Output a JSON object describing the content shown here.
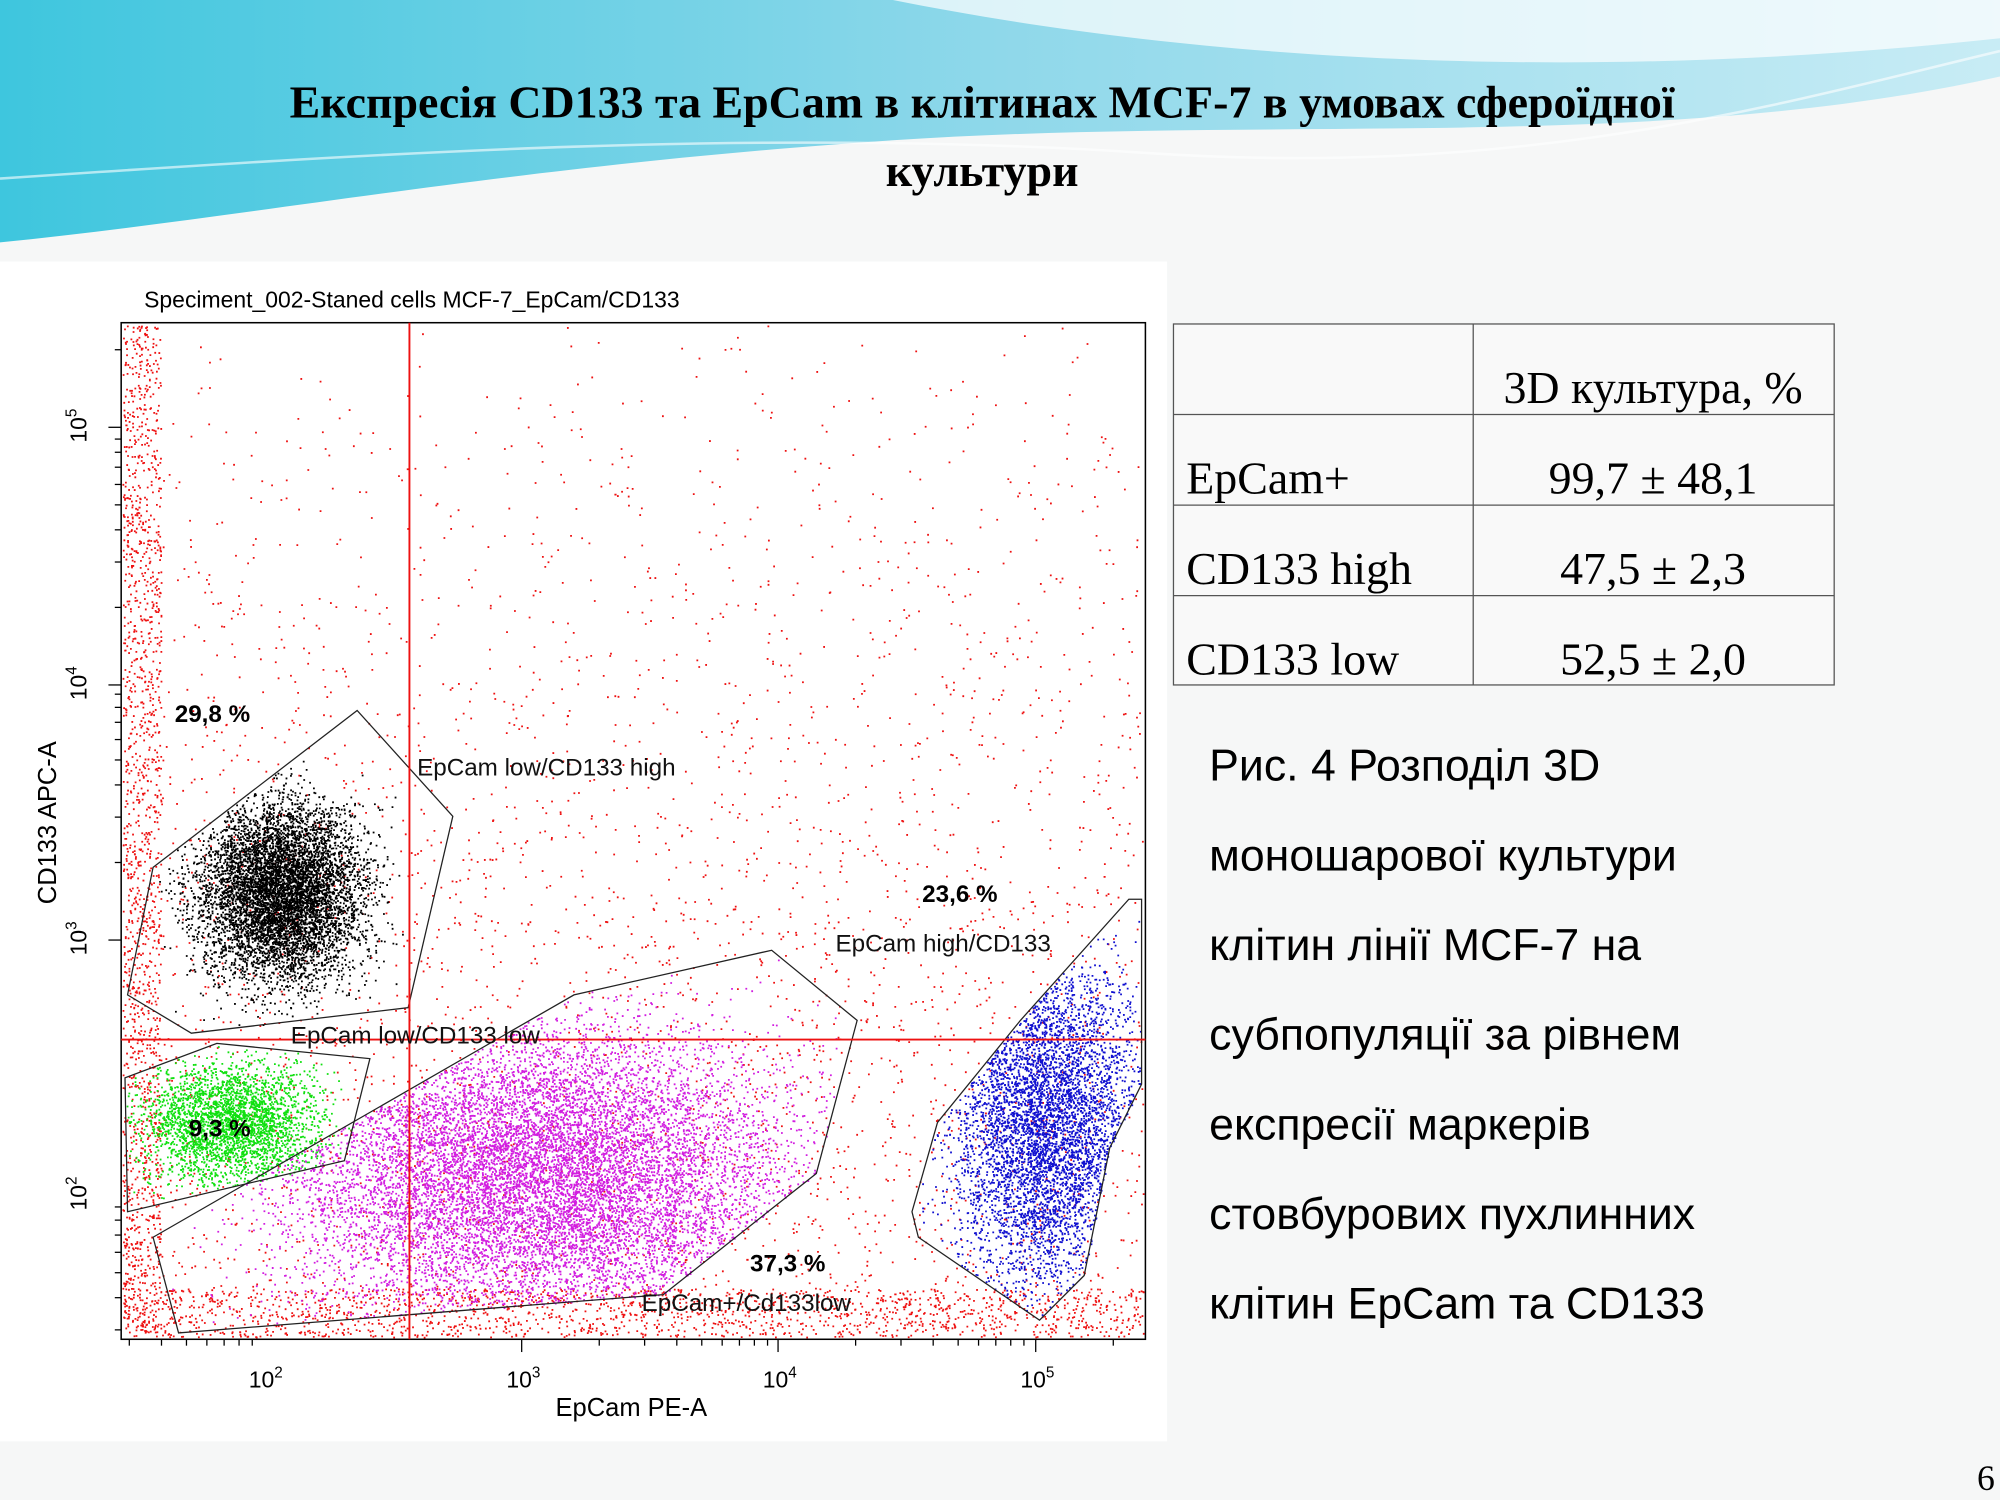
{
  "header": {
    "title_lines": [
      "Експресія CD133 та EpCam в клітинах MCF-7 в умовах сфероїдної",
      "культури"
    ]
  },
  "figure": {
    "title": "Speciment_002-Staned cells MCF-7_EpCam/CD133",
    "x_label": "EpCam PE-A",
    "y_label": "CD133 APC-A",
    "x_ticks": [
      {
        "base": "10",
        "exp": "2"
      },
      {
        "base": "10",
        "exp": "3"
      },
      {
        "base": "10",
        "exp": "4"
      },
      {
        "base": "10",
        "exp": "5"
      }
    ],
    "y_ticks": [
      {
        "base": "10",
        "exp": "2"
      },
      {
        "base": "10",
        "exp": "3"
      },
      {
        "base": "10",
        "exp": "4"
      },
      {
        "base": "10",
        "exp": "5"
      }
    ],
    "gates": [
      {
        "name": "EpCam low/CD133 high",
        "percent": "29,8 %"
      },
      {
        "name": "EpCam low/CD133 low",
        "percent": "9,3 %"
      },
      {
        "name": "EpCam+/Cd133low",
        "percent": "37,3 %"
      },
      {
        "name": "EpCam high/CD133",
        "percent": "23,6 %"
      }
    ]
  },
  "table": {
    "header": "3D культура, %",
    "rows": [
      [
        "EpCam+",
        "99,7 ± 48,1"
      ],
      [
        "CD133 high",
        "47,5 ± 2,3"
      ],
      [
        "CD133 low",
        "52,5 ± 2,0"
      ]
    ]
  },
  "caption": [
    "Рис. 4 Розподіл 3D",
    "моношарової культури",
    "клітин лінії MCF-7 на",
    "субпопуляції за рівнем",
    "експресії маркерів",
    "стовбурових пухлинних",
    "клітин EpCam та CD133"
  ],
  "page_number": "6"
}
